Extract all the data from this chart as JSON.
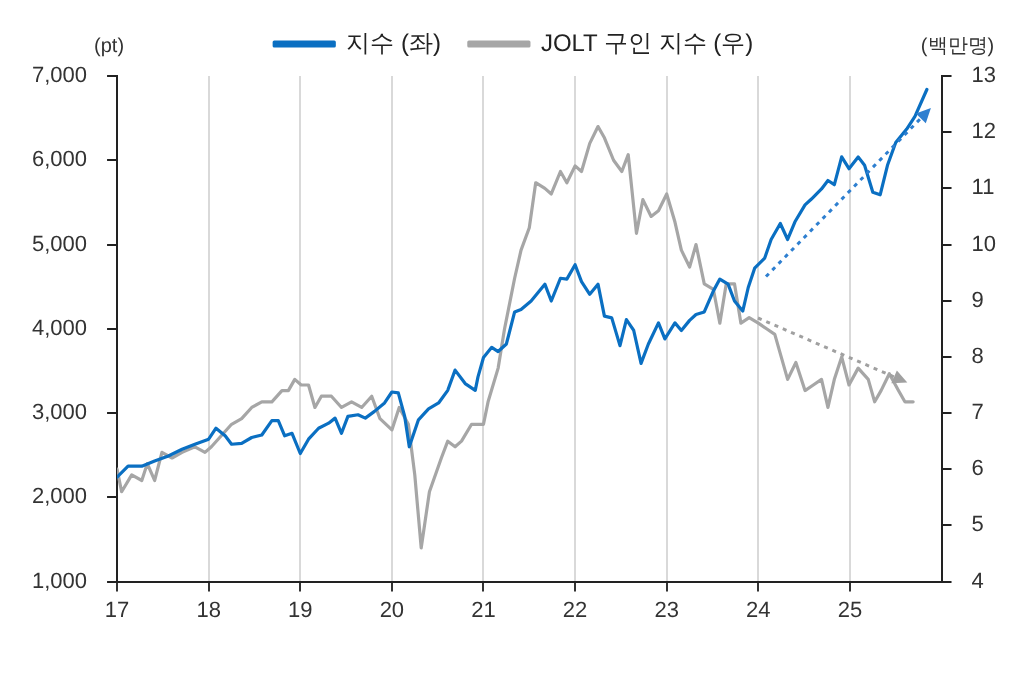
{
  "chart_data": {
    "type": "line",
    "ylabel": "(pt)",
    "y2label": "(백만명)",
    "xlim": [
      17,
      26
    ],
    "xticks": [
      17,
      18,
      19,
      20,
      21,
      22,
      23,
      24,
      25
    ],
    "ylim": [
      1000,
      7000
    ],
    "yticks": [
      {
        "value": 1000,
        "label": "1,000"
      },
      {
        "value": 2000,
        "label": "2,000"
      },
      {
        "value": 3000,
        "label": "3,000"
      },
      {
        "value": 4000,
        "label": "4,000"
      },
      {
        "value": 5000,
        "label": "5,000"
      },
      {
        "value": 6000,
        "label": "6,000"
      },
      {
        "value": 7000,
        "label": "7,000"
      }
    ],
    "y2lim": [
      4,
      13
    ],
    "y2ticks": [
      4,
      5,
      6,
      7,
      8,
      9,
      10,
      11,
      12,
      13
    ],
    "grid": "x",
    "legend": "top",
    "marker": "none",
    "line_style": "solid",
    "series": [
      {
        "name": "지수 (좌)",
        "color": "#0a6fc2",
        "axis": "y",
        "x": [
          17.0,
          17.12,
          17.27,
          17.41,
          17.56,
          17.71,
          17.85,
          18.0,
          18.08,
          18.18,
          18.25,
          18.36,
          18.47,
          18.58,
          18.69,
          18.76,
          18.83,
          18.91,
          19.0,
          19.09,
          19.2,
          19.31,
          19.38,
          19.45,
          19.52,
          19.63,
          19.71,
          19.81,
          19.92,
          20.0,
          20.07,
          20.14,
          20.19,
          20.29,
          20.4,
          20.51,
          20.61,
          20.69,
          20.8,
          20.91,
          20.94,
          21.0,
          21.09,
          21.16,
          21.25,
          21.34,
          21.41,
          21.52,
          21.67,
          21.74,
          21.84,
          21.91,
          22.0,
          22.07,
          22.16,
          22.25,
          22.32,
          22.4,
          22.49,
          22.56,
          22.64,
          22.72,
          22.8,
          22.91,
          22.98,
          23.09,
          23.16,
          23.25,
          23.32,
          23.41,
          23.51,
          23.58,
          23.67,
          23.74,
          23.83,
          23.89,
          23.96,
          24.07,
          24.14,
          24.24,
          24.32,
          24.4,
          24.51,
          24.58,
          24.69,
          24.76,
          24.83,
          24.91,
          24.99,
          25.09,
          25.16,
          25.25,
          25.33,
          25.41,
          25.5,
          25.62,
          25.71,
          25.84
        ],
        "values": [
          2240,
          2370,
          2370,
          2430,
          2490,
          2570,
          2630,
          2690,
          2820,
          2730,
          2630,
          2640,
          2710,
          2740,
          2910,
          2910,
          2730,
          2760,
          2520,
          2690,
          2820,
          2880,
          2940,
          2760,
          2960,
          2980,
          2940,
          3020,
          3120,
          3250,
          3240,
          2960,
          2600,
          2920,
          3050,
          3120,
          3270,
          3510,
          3350,
          3270,
          3430,
          3660,
          3780,
          3730,
          3820,
          4200,
          4230,
          4330,
          4530,
          4330,
          4600,
          4590,
          4760,
          4560,
          4410,
          4530,
          4150,
          4130,
          3800,
          4110,
          3980,
          3590,
          3820,
          4070,
          3880,
          4070,
          3980,
          4100,
          4170,
          4200,
          4450,
          4590,
          4530,
          4330,
          4210,
          4490,
          4720,
          4840,
          5060,
          5250,
          5060,
          5270,
          5470,
          5540,
          5660,
          5760,
          5710,
          6040,
          5900,
          6040,
          5940,
          5620,
          5590,
          5940,
          6210,
          6370,
          6520,
          6840
        ]
      },
      {
        "name": "JOLT 구인 지수 (우)",
        "color": "#a6a6a6",
        "axis": "y2",
        "x": [
          17.0,
          17.05,
          17.16,
          17.27,
          17.33,
          17.41,
          17.49,
          17.6,
          17.71,
          17.85,
          17.96,
          18.03,
          18.14,
          18.25,
          18.36,
          18.47,
          18.58,
          18.69,
          18.8,
          18.87,
          18.94,
          19.01,
          19.09,
          19.16,
          19.23,
          19.34,
          19.45,
          19.56,
          19.67,
          19.78,
          19.87,
          20.0,
          20.08,
          20.18,
          20.25,
          20.32,
          20.41,
          20.54,
          20.61,
          20.69,
          20.76,
          20.87,
          21.0,
          21.05,
          21.16,
          21.23,
          21.34,
          21.41,
          21.5,
          21.57,
          21.67,
          21.74,
          21.84,
          21.91,
          22.0,
          22.07,
          22.16,
          22.25,
          22.32,
          22.42,
          22.51,
          22.58,
          22.67,
          22.74,
          22.83,
          22.91,
          23.0,
          23.09,
          23.16,
          23.25,
          23.32,
          23.41,
          23.51,
          23.58,
          23.65,
          23.74,
          23.81,
          23.9,
          24.0,
          24.09,
          24.18,
          24.25,
          24.32,
          24.41,
          24.51,
          24.6,
          24.69,
          24.76,
          24.83,
          24.91,
          24.99,
          25.09,
          25.2,
          25.27,
          25.34,
          25.43,
          25.53,
          25.6,
          25.69
        ],
        "values": [
          6.0,
          5.6,
          5.9,
          5.8,
          6.1,
          5.8,
          6.3,
          6.2,
          6.3,
          6.4,
          6.3,
          6.4,
          6.6,
          6.8,
          6.9,
          7.1,
          7.2,
          7.2,
          7.4,
          7.4,
          7.6,
          7.5,
          7.5,
          7.1,
          7.3,
          7.3,
          7.1,
          7.2,
          7.1,
          7.3,
          6.9,
          6.7,
          7.1,
          6.8,
          5.9,
          4.6,
          5.6,
          6.2,
          6.5,
          6.4,
          6.5,
          6.8,
          6.8,
          7.2,
          7.8,
          8.5,
          9.4,
          9.9,
          10.3,
          11.1,
          11.0,
          10.9,
          11.3,
          11.1,
          11.4,
          11.3,
          11.8,
          12.1,
          11.9,
          11.5,
          11.3,
          11.6,
          10.2,
          10.8,
          10.5,
          10.6,
          10.9,
          10.4,
          9.9,
          9.6,
          10.0,
          9.3,
          9.2,
          8.6,
          9.3,
          9.3,
          8.6,
          8.7,
          8.6,
          8.5,
          8.4,
          8.0,
          7.6,
          7.9,
          7.4,
          7.5,
          7.6,
          7.1,
          7.6,
          8.0,
          7.5,
          7.8,
          7.6,
          7.2,
          7.4,
          7.7,
          7.4,
          7.2,
          7.2
        ]
      }
    ]
  }
}
